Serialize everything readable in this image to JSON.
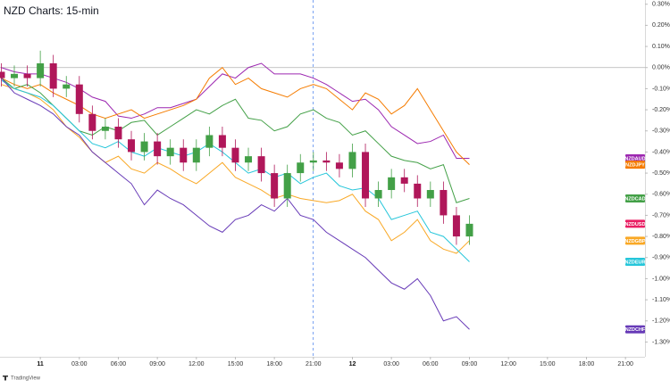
{
  "chart_data": {
    "type": "line",
    "title": "NZD Charts: 15-min",
    "brand": "TradingView",
    "x": [
      -3,
      -2,
      -1,
      0,
      1,
      2,
      3,
      4,
      5,
      6,
      7,
      8,
      9,
      10,
      11,
      12,
      13,
      14,
      15,
      16,
      17,
      18,
      19,
      20,
      21,
      22,
      23,
      24,
      25,
      26,
      27,
      28,
      29,
      30,
      31,
      32,
      33
    ],
    "xlim": [
      -3.1,
      46.5
    ],
    "xticks": [
      {
        "value": 0,
        "label": "11"
      },
      {
        "value": 3,
        "label": "03:00"
      },
      {
        "value": 6,
        "label": "06:00"
      },
      {
        "value": 9,
        "label": "09:00"
      },
      {
        "value": 12,
        "label": "12:00"
      },
      {
        "value": 15,
        "label": "15:00"
      },
      {
        "value": 18,
        "label": "18:00"
      },
      {
        "value": 21,
        "label": "21:00"
      },
      {
        "value": 24,
        "label": "12"
      },
      {
        "value": 27,
        "label": "03:00"
      },
      {
        "value": 30,
        "label": "06:00"
      },
      {
        "value": 33,
        "label": "09:00"
      },
      {
        "value": 36,
        "label": "12:00"
      },
      {
        "value": 39,
        "label": "15:00"
      },
      {
        "value": 42,
        "label": "18:00"
      },
      {
        "value": 45,
        "label": "21:00"
      }
    ],
    "ylim": [
      -1.37,
      0.32
    ],
    "yticks": [
      {
        "value": 0.3,
        "label": "0.30%"
      },
      {
        "value": 0.2,
        "label": "0.20%"
      },
      {
        "value": 0.1,
        "label": "0.10%"
      },
      {
        "value": 0,
        "label": "0.00%"
      },
      {
        "value": -0.1,
        "label": "-0.10%"
      },
      {
        "value": -0.2,
        "label": "-0.20%"
      },
      {
        "value": -0.3,
        "label": "-0.30%"
      },
      {
        "value": -0.4,
        "label": "-0.40%"
      },
      {
        "value": -0.5,
        "label": "-0.50%"
      },
      {
        "value": -0.6,
        "label": "-0.60%"
      },
      {
        "value": -0.7,
        "label": "-0.70%"
      },
      {
        "value": -0.8,
        "label": "-0.80%"
      },
      {
        "value": -0.9,
        "label": "-0.90%"
      },
      {
        "value": -1.0,
        "label": "-1.00%"
      },
      {
        "value": -1.1,
        "label": "-1.10%"
      },
      {
        "value": -1.2,
        "label": "-1.20%"
      },
      {
        "value": -1.3,
        "label": "-1.30%"
      }
    ],
    "series": [
      {
        "name": "NZDAUD",
        "color": "#9c27b0",
        "values": [
          0.0,
          -0.02,
          -0.03,
          -0.03,
          -0.05,
          -0.07,
          -0.1,
          -0.14,
          -0.16,
          -0.23,
          -0.24,
          -0.22,
          -0.19,
          -0.19,
          -0.17,
          -0.15,
          -0.09,
          -0.03,
          -0.05,
          0.0,
          0.02,
          -0.03,
          -0.03,
          -0.03,
          -0.05,
          -0.08,
          -0.12,
          -0.16,
          -0.15,
          -0.2,
          -0.28,
          -0.32,
          -0.36,
          -0.35,
          -0.32,
          -0.43,
          -0.43
        ]
      },
      {
        "name": "NZDJPY",
        "color": "#f57c00",
        "values": [
          -0.05,
          -0.08,
          -0.1,
          -0.08,
          -0.12,
          -0.15,
          -0.18,
          -0.22,
          -0.24,
          -0.22,
          -0.2,
          -0.24,
          -0.22,
          -0.2,
          -0.18,
          -0.15,
          -0.05,
          0.0,
          -0.08,
          -0.05,
          -0.1,
          -0.12,
          -0.14,
          -0.1,
          -0.08,
          -0.1,
          -0.15,
          -0.2,
          -0.12,
          -0.15,
          -0.22,
          -0.18,
          -0.1,
          -0.2,
          -0.3,
          -0.4,
          -0.46
        ]
      },
      {
        "name": "NZDCAD",
        "color": "#43a047",
        "values": [
          -0.05,
          -0.1,
          -0.08,
          -0.12,
          -0.18,
          -0.24,
          -0.3,
          -0.32,
          -0.28,
          -0.3,
          -0.26,
          -0.25,
          -0.32,
          -0.28,
          -0.24,
          -0.2,
          -0.22,
          -0.18,
          -0.15,
          -0.24,
          -0.25,
          -0.3,
          -0.28,
          -0.22,
          -0.2,
          -0.24,
          -0.26,
          -0.32,
          -0.3,
          -0.36,
          -0.42,
          -0.44,
          -0.45,
          -0.48,
          -0.46,
          -0.64,
          -0.62
        ]
      },
      {
        "name": "NZDGBP",
        "color": "#f9a825",
        "values": [
          -0.08,
          -0.1,
          -0.12,
          -0.15,
          -0.2,
          -0.28,
          -0.33,
          -0.4,
          -0.45,
          -0.42,
          -0.48,
          -0.5,
          -0.45,
          -0.48,
          -0.52,
          -0.55,
          -0.5,
          -0.45,
          -0.52,
          -0.55,
          -0.58,
          -0.62,
          -0.6,
          -0.62,
          -0.63,
          -0.64,
          -0.63,
          -0.6,
          -0.68,
          -0.72,
          -0.82,
          -0.78,
          -0.72,
          -0.82,
          -0.86,
          -0.88,
          -0.82
        ]
      },
      {
        "name": "NZDEUR",
        "color": "#26c6da",
        "values": [
          -0.06,
          -0.1,
          -0.12,
          -0.14,
          -0.18,
          -0.24,
          -0.3,
          -0.36,
          -0.38,
          -0.35,
          -0.4,
          -0.42,
          -0.38,
          -0.4,
          -0.42,
          -0.4,
          -0.36,
          -0.4,
          -0.45,
          -0.5,
          -0.48,
          -0.52,
          -0.5,
          -0.55,
          -0.52,
          -0.5,
          -0.56,
          -0.58,
          -0.57,
          -0.62,
          -0.72,
          -0.7,
          -0.68,
          -0.78,
          -0.8,
          -0.86,
          -0.92
        ]
      },
      {
        "name": "NZDCHF",
        "color": "#673ab7",
        "values": [
          -0.05,
          -0.12,
          -0.15,
          -0.18,
          -0.22,
          -0.28,
          -0.32,
          -0.4,
          -0.45,
          -0.5,
          -0.55,
          -0.65,
          -0.58,
          -0.62,
          -0.65,
          -0.7,
          -0.75,
          -0.78,
          -0.72,
          -0.7,
          -0.65,
          -0.68,
          -0.62,
          -0.7,
          -0.72,
          -0.78,
          -0.82,
          -0.86,
          -0.9,
          -0.96,
          -1.02,
          -1.05,
          -1.0,
          -1.08,
          -1.2,
          -1.18,
          -1.24
        ]
      }
    ],
    "candles": {
      "name": "NZDUSD",
      "color": "#e91e63",
      "up_color": "#43a047",
      "down_color": "#b0175a",
      "open": [
        -0.02,
        -0.05,
        -0.03,
        -0.05,
        0.02,
        -0.1,
        -0.08,
        -0.22,
        -0.3,
        -0.28,
        -0.34,
        -0.4,
        -0.35,
        -0.42,
        -0.38,
        -0.45,
        -0.38,
        -0.32,
        -0.38,
        -0.45,
        -0.42,
        -0.5,
        -0.62,
        -0.5,
        -0.45,
        -0.44,
        -0.45,
        -0.48,
        -0.4,
        -0.62,
        -0.58,
        -0.52,
        -0.55,
        -0.62,
        -0.58,
        -0.7,
        -0.8
      ],
      "high": [
        0.02,
        0.01,
        0.01,
        0.08,
        0.06,
        -0.04,
        -0.04,
        -0.18,
        -0.24,
        -0.24,
        -0.3,
        -0.31,
        -0.31,
        -0.34,
        -0.34,
        -0.34,
        -0.28,
        -0.28,
        -0.34,
        -0.38,
        -0.38,
        -0.46,
        -0.46,
        -0.41,
        -0.4,
        -0.4,
        -0.41,
        -0.36,
        -0.36,
        -0.54,
        -0.48,
        -0.48,
        -0.51,
        -0.54,
        -0.54,
        -0.66,
        -0.7
      ],
      "low": [
        -0.09,
        -0.09,
        -0.09,
        -0.09,
        -0.14,
        -0.14,
        -0.26,
        -0.34,
        -0.34,
        -0.38,
        -0.44,
        -0.44,
        -0.46,
        -0.46,
        -0.49,
        -0.49,
        -0.42,
        -0.42,
        -0.49,
        -0.49,
        -0.54,
        -0.66,
        -0.66,
        -0.54,
        -0.49,
        -0.49,
        -0.52,
        -0.52,
        -0.66,
        -0.66,
        -0.62,
        -0.59,
        -0.66,
        -0.66,
        -0.74,
        -0.84,
        -0.84
      ],
      "close": [
        -0.05,
        -0.03,
        -0.05,
        0.02,
        -0.1,
        -0.08,
        -0.22,
        -0.3,
        -0.28,
        -0.34,
        -0.4,
        -0.35,
        -0.42,
        -0.38,
        -0.45,
        -0.38,
        -0.32,
        -0.38,
        -0.45,
        -0.42,
        -0.5,
        -0.62,
        -0.5,
        -0.45,
        -0.44,
        -0.45,
        -0.48,
        -0.4,
        -0.62,
        -0.58,
        -0.52,
        -0.55,
        -0.62,
        -0.58,
        -0.7,
        -0.8,
        -0.74
      ]
    }
  }
}
